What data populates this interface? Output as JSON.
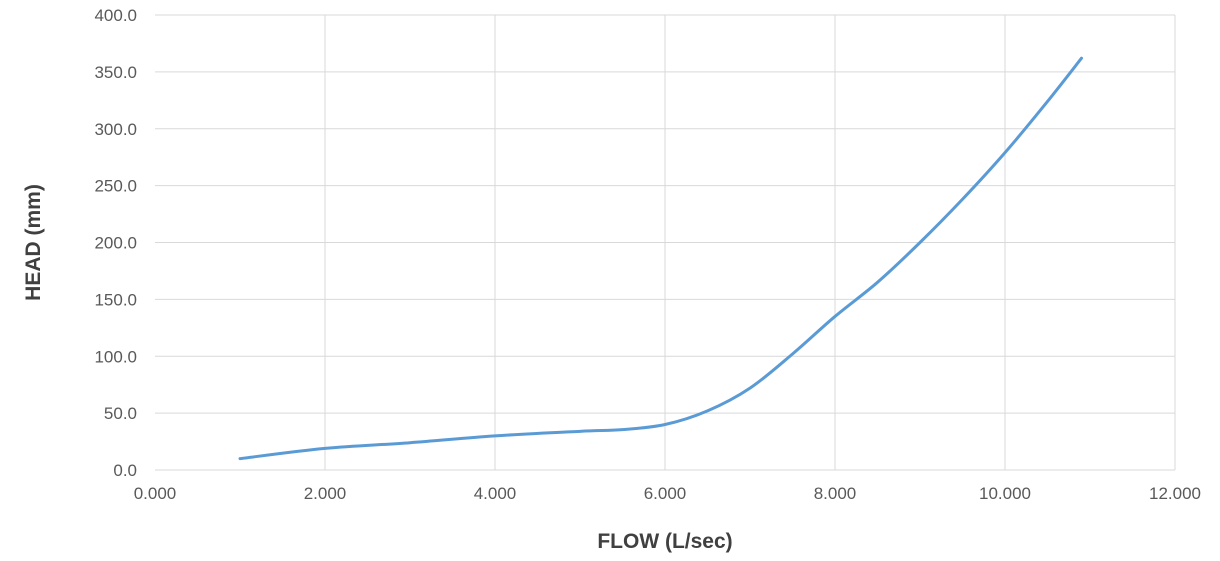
{
  "chart_data": {
    "type": "line",
    "xlabel": "FLOW (L/sec)",
    "ylabel": "HEAD (mm)",
    "xlim": [
      0,
      12
    ],
    "ylim": [
      0,
      400
    ],
    "x_ticks": [
      "0.000",
      "2.000",
      "4.000",
      "6.000",
      "8.000",
      "10.000",
      "12.000"
    ],
    "y_ticks": [
      "0.0",
      "50.0",
      "100.0",
      "150.0",
      "200.0",
      "250.0",
      "300.0",
      "350.0",
      "400.0"
    ],
    "grid": true,
    "legend": "none",
    "series": [
      {
        "color": "#5b9bd5",
        "x": [
          1.0,
          2.0,
          3.0,
          4.0,
          5.0,
          5.5,
          6.0,
          6.5,
          7.0,
          7.5,
          8.0,
          8.5,
          9.0,
          9.5,
          10.0,
          10.5,
          10.9
        ],
        "y": [
          10,
          19,
          24,
          30,
          34,
          35.5,
          40,
          52,
          72,
          102,
          135,
          165,
          200,
          238,
          279,
          324,
          362
        ]
      }
    ]
  }
}
